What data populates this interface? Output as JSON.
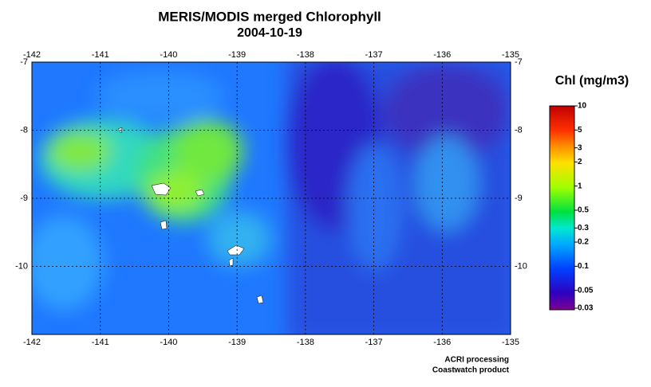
{
  "map": {
    "title": "MERIS/MODIS merged Chlorophyll",
    "subtitle": "2004-10-19",
    "xlim": [
      -142,
      -135
    ],
    "ylim": [
      -11,
      -7
    ],
    "xticks": [
      -142,
      -141,
      -140,
      -139,
      -138,
      -137,
      -136,
      -135
    ],
    "yticks": [
      -7,
      -8,
      -9,
      -10
    ],
    "grid": true,
    "colorbar": {
      "title": "Chl (mg/m3)",
      "scale": "log",
      "lim": [
        0.03,
        10
      ],
      "ticks": [
        10,
        5,
        3,
        2,
        1,
        0.5,
        0.3,
        0.2,
        0.1,
        0.05,
        0.03
      ]
    },
    "credits": [
      "ACRI processing",
      "Coastwatch product"
    ]
  }
}
